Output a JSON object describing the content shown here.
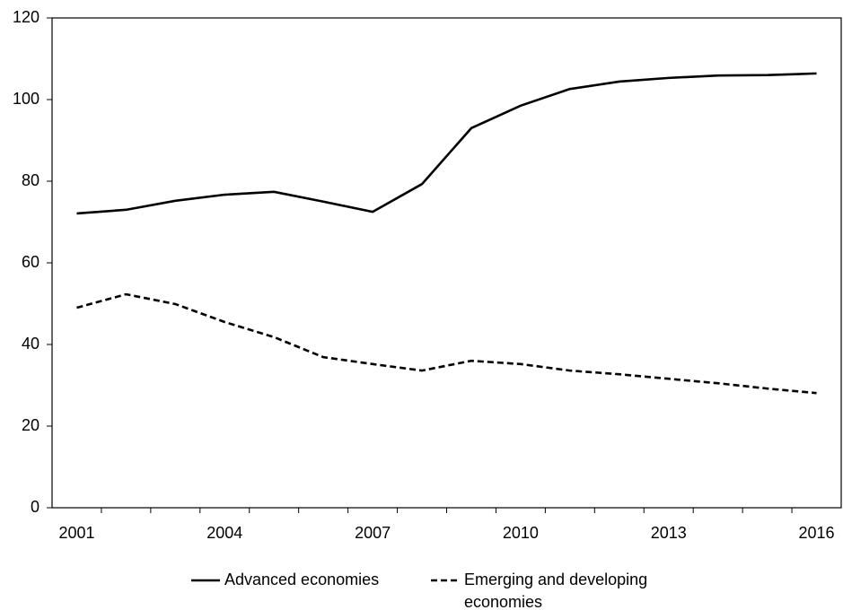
{
  "chart_data": {
    "type": "line",
    "categories": [
      2001,
      null,
      null,
      2004,
      null,
      null,
      2007,
      null,
      null,
      2010,
      null,
      null,
      2013,
      null,
      null,
      2016
    ],
    "series": [
      {
        "name": "Advanced economies",
        "color": "#000000",
        "dash": "solid",
        "values": [
          72.1,
          73.0,
          75.2,
          76.7,
          77.4,
          75.0,
          72.5,
          79.3,
          93.0,
          98.5,
          102.6,
          104.4,
          105.3,
          105.9,
          106.0,
          106.4
        ]
      },
      {
        "name": "Emerging and developing economies",
        "color": "#000000",
        "dash": "dashed",
        "values": [
          49.0,
          52.3,
          49.9,
          45.5,
          41.8,
          36.9,
          35.2,
          33.6,
          36.0,
          35.2,
          33.6,
          32.7,
          31.6,
          30.5,
          29.2,
          28.1
        ]
      }
    ],
    "ylim": [
      0,
      120
    ],
    "yticks": [
      0,
      20,
      40,
      60,
      80,
      100,
      120
    ],
    "grid": false,
    "legend": "bottom"
  }
}
